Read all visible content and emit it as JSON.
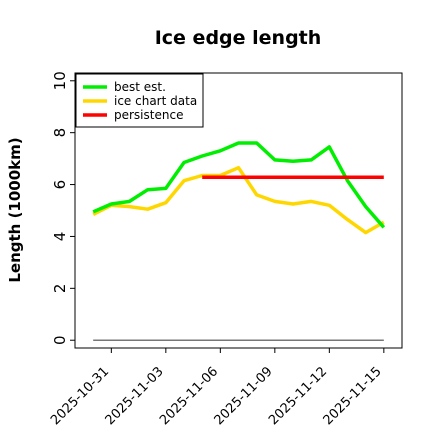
{
  "chart_data": {
    "type": "line",
    "title": "Ice edge length",
    "xlabel": "",
    "ylabel": "Length (1000km)",
    "ylim": [
      -0.3,
      10.3
    ],
    "yticks": [
      0,
      2,
      4,
      6,
      8,
      10
    ],
    "xlim": [
      "2025-10-29",
      "2025-11-16"
    ],
    "xticks": [
      "2025-10-31",
      "2025-11-03",
      "2025-11-06",
      "2025-11-09",
      "2025-11-12",
      "2025-11-15"
    ],
    "grid": false,
    "legend_position": "top-left",
    "series": [
      {
        "name": "best est.",
        "color": "#00ee00",
        "x": [
          "2025-10-30",
          "2025-10-31",
          "2025-11-01",
          "2025-11-02",
          "2025-11-03",
          "2025-11-04",
          "2025-11-05",
          "2025-11-06",
          "2025-11-07",
          "2025-11-08",
          "2025-11-09",
          "2025-11-10",
          "2025-11-11",
          "2025-11-12",
          "2025-11-13",
          "2025-11-14",
          "2025-11-15"
        ],
        "values": [
          4.95,
          5.25,
          5.35,
          5.8,
          5.85,
          6.85,
          7.1,
          7.3,
          7.6,
          7.6,
          6.95,
          6.9,
          6.95,
          7.45,
          6.15,
          5.15,
          4.35
        ]
      },
      {
        "name": "ice chart data",
        "color": "#ffd700",
        "x": [
          "2025-10-30",
          "2025-10-31",
          "2025-11-01",
          "2025-11-02",
          "2025-11-03",
          "2025-11-04",
          "2025-11-05",
          "2025-11-06",
          "2025-11-07",
          "2025-11-08",
          "2025-11-09",
          "2025-11-10",
          "2025-11-11",
          "2025-11-12",
          "2025-11-13",
          "2025-11-14",
          "2025-11-15"
        ],
        "values": [
          4.85,
          5.2,
          5.15,
          5.05,
          5.3,
          6.15,
          6.35,
          6.35,
          6.65,
          5.6,
          5.35,
          5.25,
          5.35,
          5.2,
          4.65,
          4.15,
          4.55
        ]
      },
      {
        "name": "persistence",
        "color": "#ff0000",
        "x": [
          "2025-11-05",
          "2025-11-15"
        ],
        "values": [
          6.28,
          6.28
        ]
      }
    ],
    "baseline": {
      "value": 0,
      "x": [
        "2025-10-30",
        "2025-11-15"
      ],
      "color": "#777777"
    }
  }
}
